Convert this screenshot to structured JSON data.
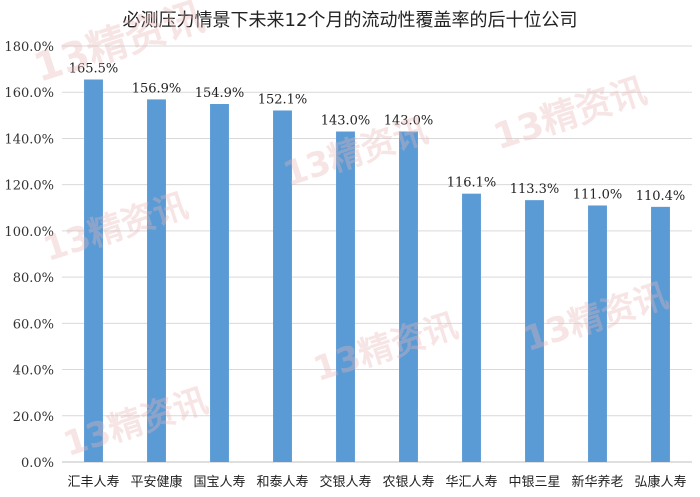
{
  "chart_data": {
    "type": "bar",
    "title": "必测压力情景下未来12个月的流动性覆盖率的后十位公司",
    "categories": [
      "汇丰人寿",
      "平安健康",
      "国宝人寿",
      "和泰人寿",
      "交银人寿",
      "农银人寿",
      "华汇人寿",
      "中银三星",
      "新华养老",
      "弘康人寿"
    ],
    "values": [
      165.5,
      156.9,
      154.9,
      152.1,
      143.0,
      143.0,
      116.1,
      113.3,
      111.0,
      110.4
    ],
    "data_labels": [
      "165.5%",
      "156.9%",
      "154.9%",
      "152.1%",
      "143.0%",
      "143.0%",
      "116.1%",
      "113.3%",
      "111.0%",
      "110.4%"
    ],
    "ylim": [
      0,
      180
    ],
    "y_ticks": [
      "0.0%",
      "20.0%",
      "40.0%",
      "60.0%",
      "80.0%",
      "100.0%",
      "120.0%",
      "140.0%",
      "160.0%",
      "180.0%"
    ],
    "grid": true,
    "bar_color": "#5b9bd5"
  },
  "watermark": "13精资讯"
}
